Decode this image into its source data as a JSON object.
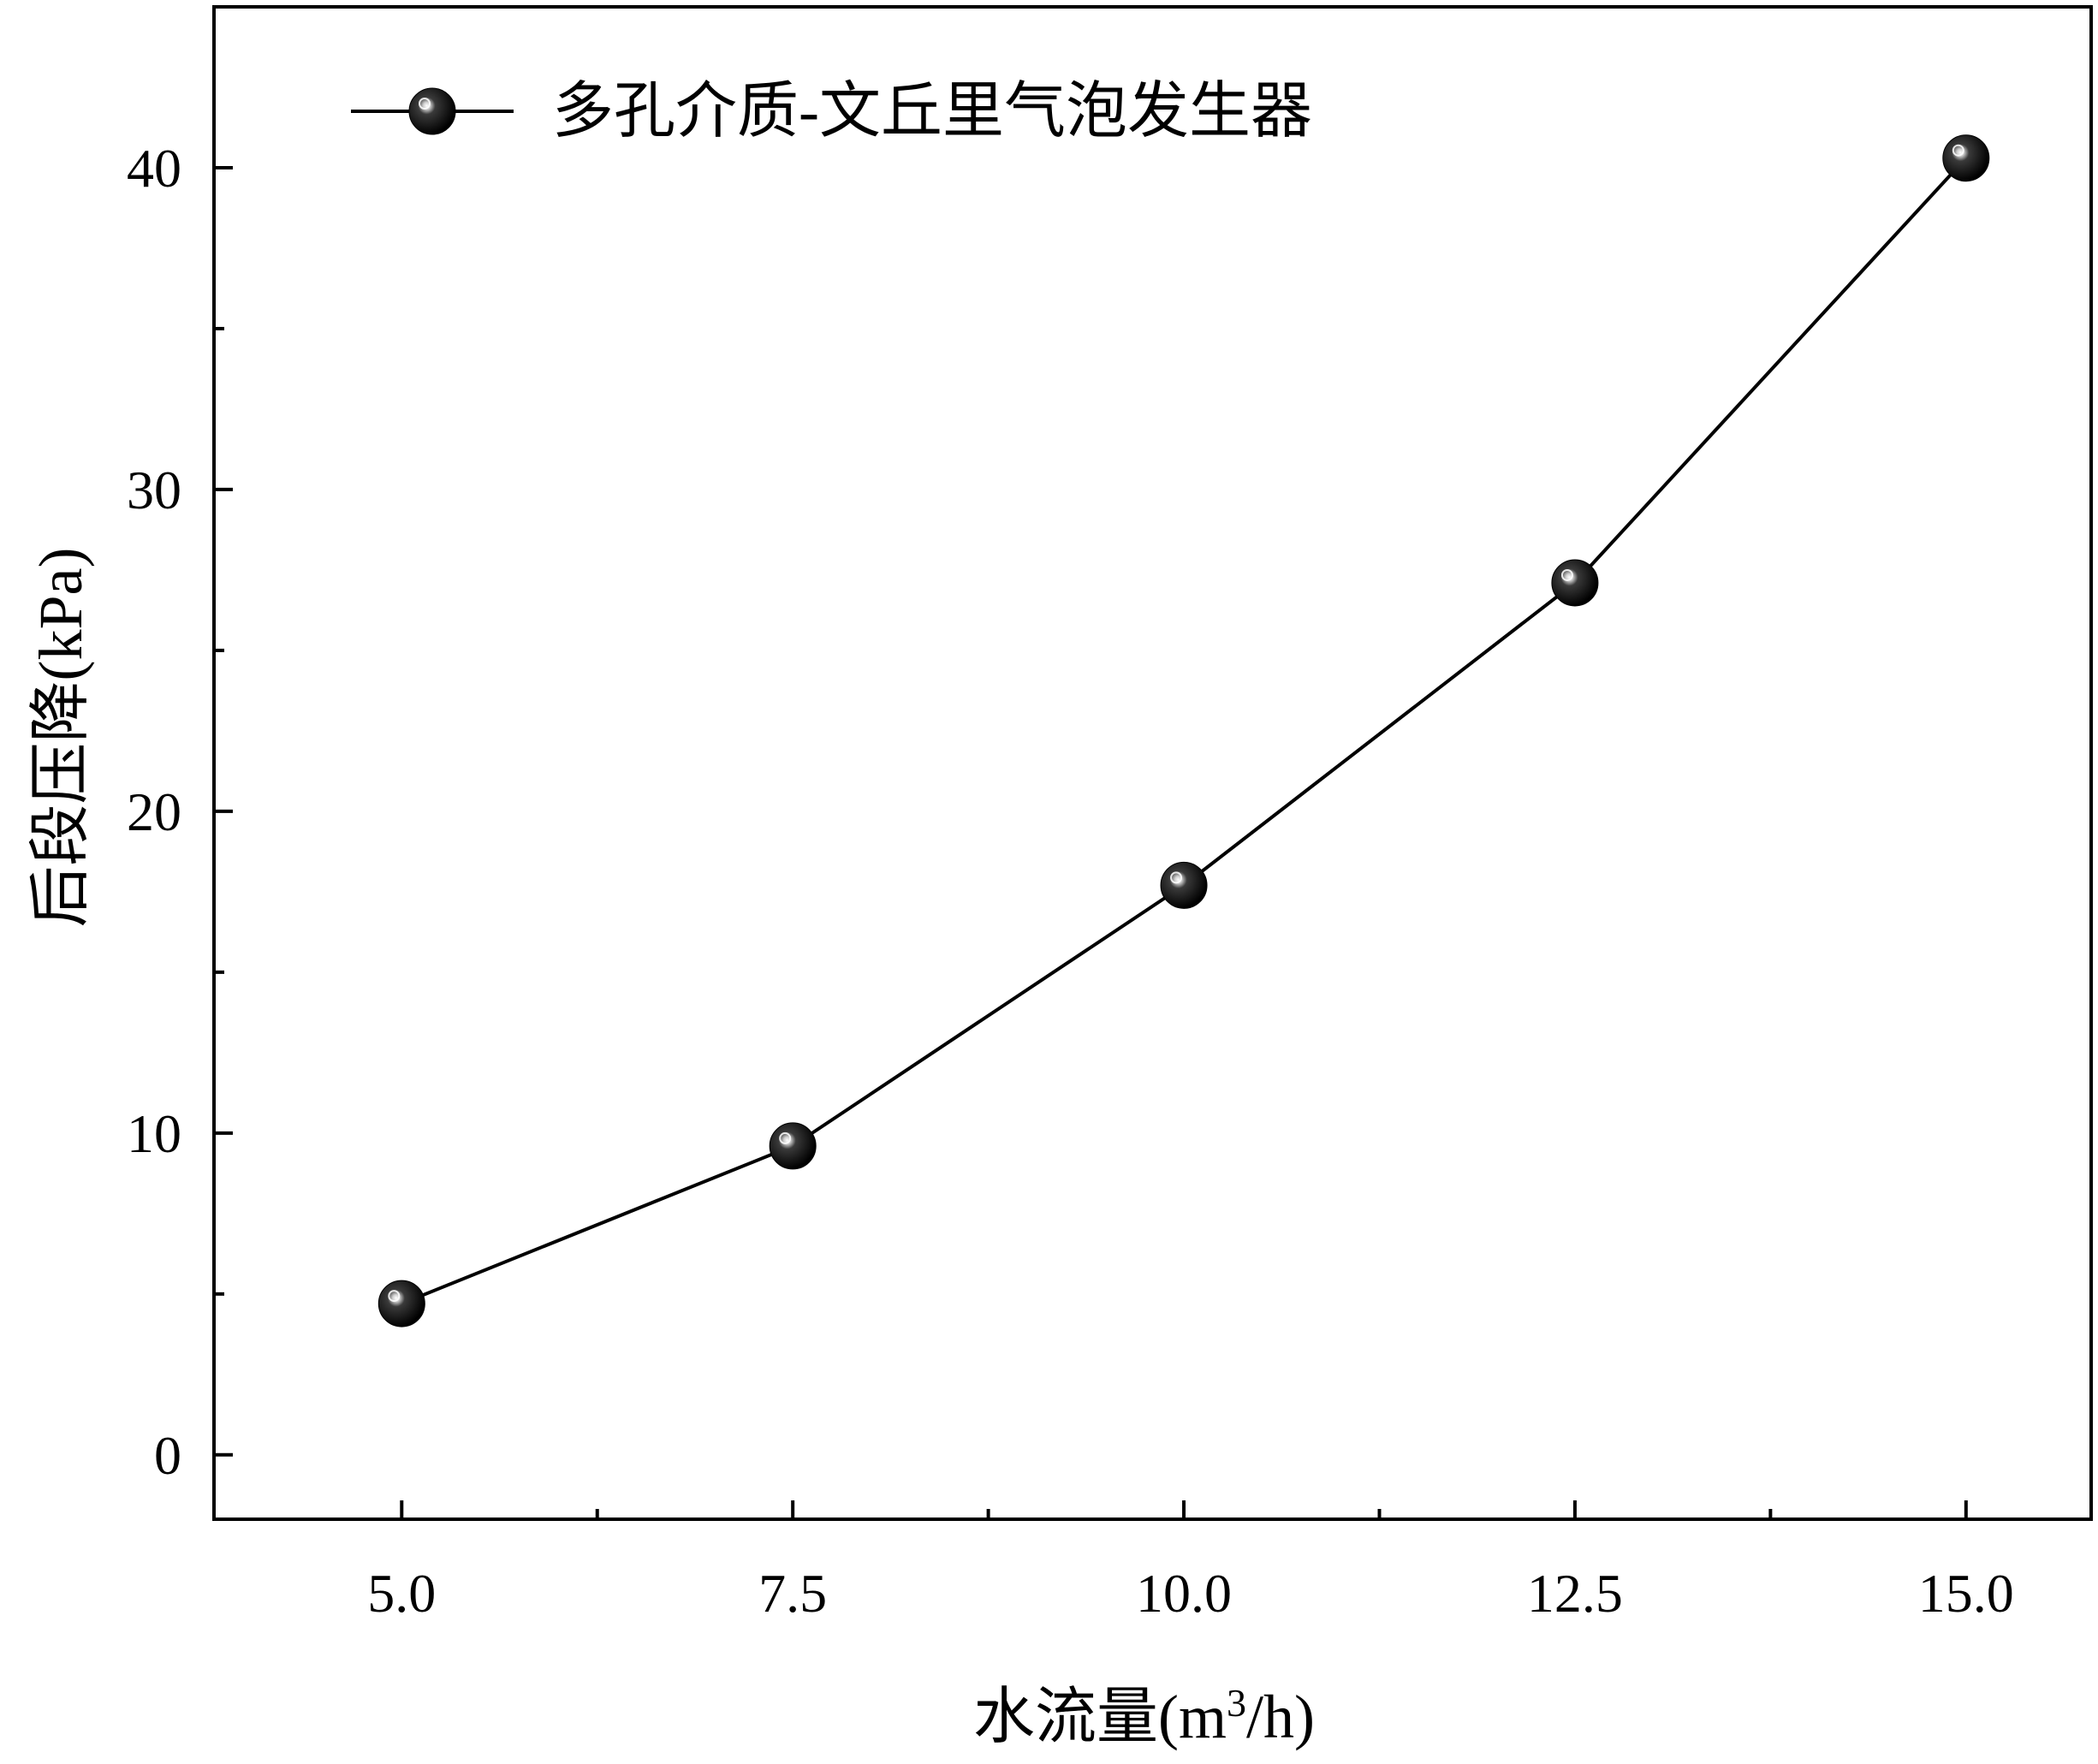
{
  "chart_data": {
    "type": "line",
    "title": "",
    "xlabel": "水流量(m³/h)",
    "xlabel_main": "水流量(m",
    "xlabel_sup": "3",
    "xlabel_tail": "/h)",
    "ylabel": "后段压降(kPa)",
    "xlim": [
      3.8,
      15.8
    ],
    "ylim": [
      -2,
      45
    ],
    "x_ticks": [
      5.0,
      7.5,
      10.0,
      12.5,
      15.0
    ],
    "x_tick_labels": [
      "5.0",
      "7.5",
      "10.0",
      "12.5",
      "15.0"
    ],
    "x_minor_ticks": [
      6.25,
      8.75,
      11.25,
      13.75
    ],
    "y_ticks": [
      0,
      10,
      20,
      30,
      40
    ],
    "y_tick_labels": [
      "0",
      "10",
      "20",
      "30",
      "40"
    ],
    "y_minor_ticks": [
      5,
      15,
      25,
      35
    ],
    "grid": false,
    "legend_position": "top-left",
    "series": [
      {
        "name": "多孔介质-文丘里气泡发生器",
        "color": "#000000",
        "marker": "sphere",
        "x": [
          5.0,
          7.5,
          10.0,
          12.5,
          15.0
        ],
        "y": [
          4.7,
          9.6,
          17.7,
          27.1,
          40.3
        ]
      }
    ]
  }
}
